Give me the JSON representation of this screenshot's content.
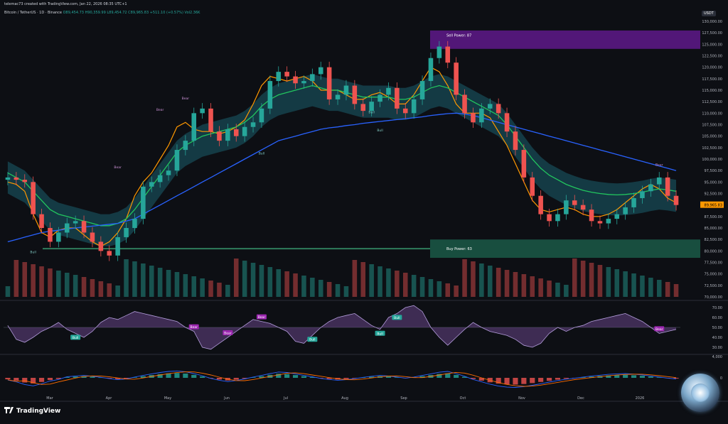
{
  "header": {
    "credit": "telemac73 created with TradingView.com, Jan 22, 2026 08:35 UTC+1",
    "symbol": "Bitcoin / TetherUS · 1D · Binance",
    "ohlc": "O89,454.73  H90,359.99  L89,454.72  C89,965.83  +511.10 (+0.57%)  Vol2.36K",
    "currency": "USDT"
  },
  "brand": {
    "name": "TradingView",
    "logo": "tradingview-logo-icon"
  },
  "colors": {
    "bg": "#0d0f14",
    "up": "#26a69a",
    "down": "#ef5350",
    "ema_fast": "#ff9800",
    "ema_mid": "#22c55e",
    "ema_slow": "#2962ff",
    "cloud": "#1d6f7f",
    "purple": "#9c27b0",
    "sell_zone": "#6a1b9a",
    "buy_zone": "#1b5e4a"
  },
  "chart_data": [
    {
      "type": "line",
      "title": "",
      "x_ticks": [
        "Mar",
        "Apr",
        "May",
        "Jun",
        "Jul",
        "Aug",
        "Sep",
        "Oct",
        "Nov",
        "Dec",
        "2026"
      ],
      "ylim": [
        70000,
        130000
      ],
      "y_ticks": [
        "130,000.00",
        "127,500.00",
        "125,000.00",
        "122,500.00",
        "120,000.00",
        "117,500.00",
        "115,000.00",
        "112,500.00",
        "110,000.00",
        "107,500.00",
        "105,000.00",
        "102,500.00",
        "100,000.00",
        "97,500.00",
        "95,000.00",
        "92,500.00",
        "90,000.00",
        "87,500.00",
        "85,000.00",
        "82,500.00",
        "80,000.00",
        "77,500.00",
        "75,000.00",
        "72,500.00",
        "70,000.00"
      ],
      "last_price_label": "89,965.83",
      "series": [
        {
          "values": [
            96000,
            95500,
            95000,
            88000,
            85000,
            82000,
            84000,
            86000,
            86500,
            84000,
            82000,
            80000,
            79000,
            83000,
            85000,
            87000,
            94000,
            95000,
            96500,
            97500,
            102000,
            104000,
            110000,
            111000,
            106000,
            104000,
            106500,
            105000,
            107000,
            108000,
            111000,
            117000,
            119000,
            118000,
            116500,
            117000,
            118500,
            120000,
            113000,
            114000,
            116000,
            112000,
            110500,
            112500,
            114000,
            115500,
            111000,
            110000,
            113000,
            117000,
            122000,
            124500,
            121000,
            114000,
            110000,
            108000,
            111000,
            112000,
            110000,
            106000,
            102000,
            96000,
            92000,
            88000,
            86500,
            88000,
            91000,
            90000,
            89000,
            86500,
            86000,
            87000,
            88000,
            89500,
            91500,
            93000,
            94500,
            96000,
            92000,
            90000
          ]
        },
        {
          "values": [
            95000,
            94500,
            93000,
            88000,
            84000,
            83000,
            84500,
            85000,
            85000,
            83500,
            82000,
            81000,
            82000,
            84000,
            87000,
            92000,
            95000,
            97000,
            100000,
            103000,
            107000,
            108000,
            106500,
            106000,
            106000,
            105500,
            106000,
            107000,
            108500,
            112000,
            116000,
            118000,
            117500,
            117000,
            117500,
            118000,
            117000,
            115000,
            115000,
            115000,
            114000,
            113000,
            113000,
            114000,
            114500,
            113500,
            112000,
            112000,
            114000,
            117000,
            120000,
            119000,
            116000,
            112000,
            110000,
            110000,
            110000,
            109000,
            106000,
            103000,
            99000,
            95000,
            91000,
            89000,
            88500,
            89000,
            89500,
            89000,
            88000,
            87500,
            87500,
            88000,
            89000,
            90500,
            92000,
            93500,
            94500,
            93500,
            91500,
            90500
          ]
        },
        {
          "values": [
            97000,
            96000,
            95000,
            93000,
            91000,
            89000,
            88000,
            87500,
            87000,
            86500,
            86000,
            85500,
            85500,
            86000,
            87000,
            89000,
            91500,
            94000,
            96500,
            99000,
            101500,
            103000,
            104000,
            105000,
            105500,
            106000,
            106500,
            107000,
            108000,
            109500,
            111500,
            113000,
            114000,
            114500,
            115000,
            115500,
            116000,
            115500,
            115000,
            115000,
            114500,
            114000,
            113500,
            113500,
            113500,
            113500,
            113000,
            113000,
            113500,
            114500,
            115500,
            116000,
            115500,
            114500,
            113500,
            112500,
            111500,
            110500,
            109500,
            107500,
            105000,
            102500,
            100000,
            98000,
            96500,
            95500,
            94500,
            93800,
            93200,
            92800,
            92500,
            92300,
            92200,
            92300,
            92500,
            92800,
            93200,
            93500,
            93300,
            93000
          ]
        },
        {
          "values": [
            82000,
            82500,
            83000,
            83500,
            84000,
            84300,
            84500,
            84800,
            85000,
            85200,
            85400,
            85600,
            85800,
            86000,
            86500,
            87000,
            88000,
            89000,
            90000,
            91000,
            92000,
            93000,
            94000,
            95000,
            96000,
            97000,
            98000,
            99000,
            100000,
            101000,
            102000,
            103000,
            104000,
            104500,
            105000,
            105500,
            106000,
            106500,
            106800,
            107000,
            107300,
            107500,
            107800,
            108000,
            108200,
            108400,
            108600,
            108800,
            109000,
            109200,
            109500,
            109700,
            109900,
            110000,
            109800,
            109500,
            109000,
            108500,
            108000,
            107500,
            107000,
            106500,
            106000,
            105500,
            105000,
            104500,
            104000,
            103500,
            103000,
            102500,
            102000,
            101500,
            101000,
            100500,
            100000,
            99500,
            99000,
            98500,
            98000,
            97500
          ]
        }
      ],
      "annotations": [
        {
          "label": "Sell Power: 87",
          "kind": "zone",
          "value": 126000
        },
        {
          "label": "Buy Power: 63",
          "kind": "zone",
          "value": 80500
        },
        {
          "label": "Bear"
        },
        {
          "label": "Bear"
        },
        {
          "label": "Bear"
        },
        {
          "label": "Bear"
        },
        {
          "label": "Bull"
        },
        {
          "label": "Bull"
        },
        {
          "label": "Bull"
        },
        {
          "label": "Bull"
        }
      ]
    },
    {
      "type": "area",
      "title": "",
      "ylim": [
        25,
        75
      ],
      "y_ticks": [
        "70.00",
        "60.00",
        "50.00",
        "40.00",
        "30.00"
      ],
      "series": [
        {
          "values": [
            52,
            38,
            35,
            40,
            46,
            50,
            55,
            48,
            44,
            40,
            46,
            55,
            60,
            58,
            62,
            66,
            64,
            62,
            60,
            58,
            56,
            50,
            46,
            30,
            28,
            34,
            40,
            46,
            52,
            58,
            56,
            54,
            50,
            46,
            36,
            34,
            42,
            50,
            56,
            60,
            62,
            64,
            58,
            52,
            48,
            60,
            64,
            70,
            72,
            66,
            50,
            40,
            32,
            40,
            48,
            55,
            50,
            46,
            44,
            42,
            38,
            32,
            30,
            34,
            44,
            50,
            46,
            50,
            52,
            56,
            58,
            60,
            62,
            64,
            60,
            56,
            50,
            44,
            46,
            48
          ]
        }
      ],
      "annotations": [
        {
          "label": "Bear"
        },
        {
          "label": "Bear"
        },
        {
          "label": "Bear"
        },
        {
          "label": "Bear"
        },
        {
          "label": "Bull"
        },
        {
          "label": "Bull"
        },
        {
          "label": "Bull"
        },
        {
          "label": "Bull"
        }
      ]
    },
    {
      "type": "bar",
      "title": "",
      "ylim": [
        -4000,
        4000
      ],
      "y_ticks": [
        "4,000",
        "0"
      ],
      "values": [
        -800,
        -1500,
        -2500,
        -3000,
        -2200,
        -1200,
        -600,
        400,
        700,
        900,
        600,
        200,
        -300,
        -700,
        -400,
        300,
        900,
        1500,
        2000,
        2400,
        2600,
        2300,
        1600,
        800,
        -200,
        -900,
        -1400,
        -1000,
        -400,
        300,
        900,
        1600,
        2200,
        2000,
        1500,
        900,
        400,
        -200,
        -600,
        -900,
        -700,
        -300,
        200,
        600,
        900,
        700,
        300,
        -100,
        300,
        900,
        1500,
        2100,
        2400,
        1600,
        600,
        -600,
        -1500,
        -2400,
        -3100,
        -3500,
        -3600,
        -3300,
        -2800,
        -2200,
        -1600,
        -1000,
        -500,
        -100,
        300,
        700,
        1000,
        1300,
        1500,
        1600,
        1400,
        1100,
        700,
        300,
        -100,
        -400
      ]
    }
  ]
}
